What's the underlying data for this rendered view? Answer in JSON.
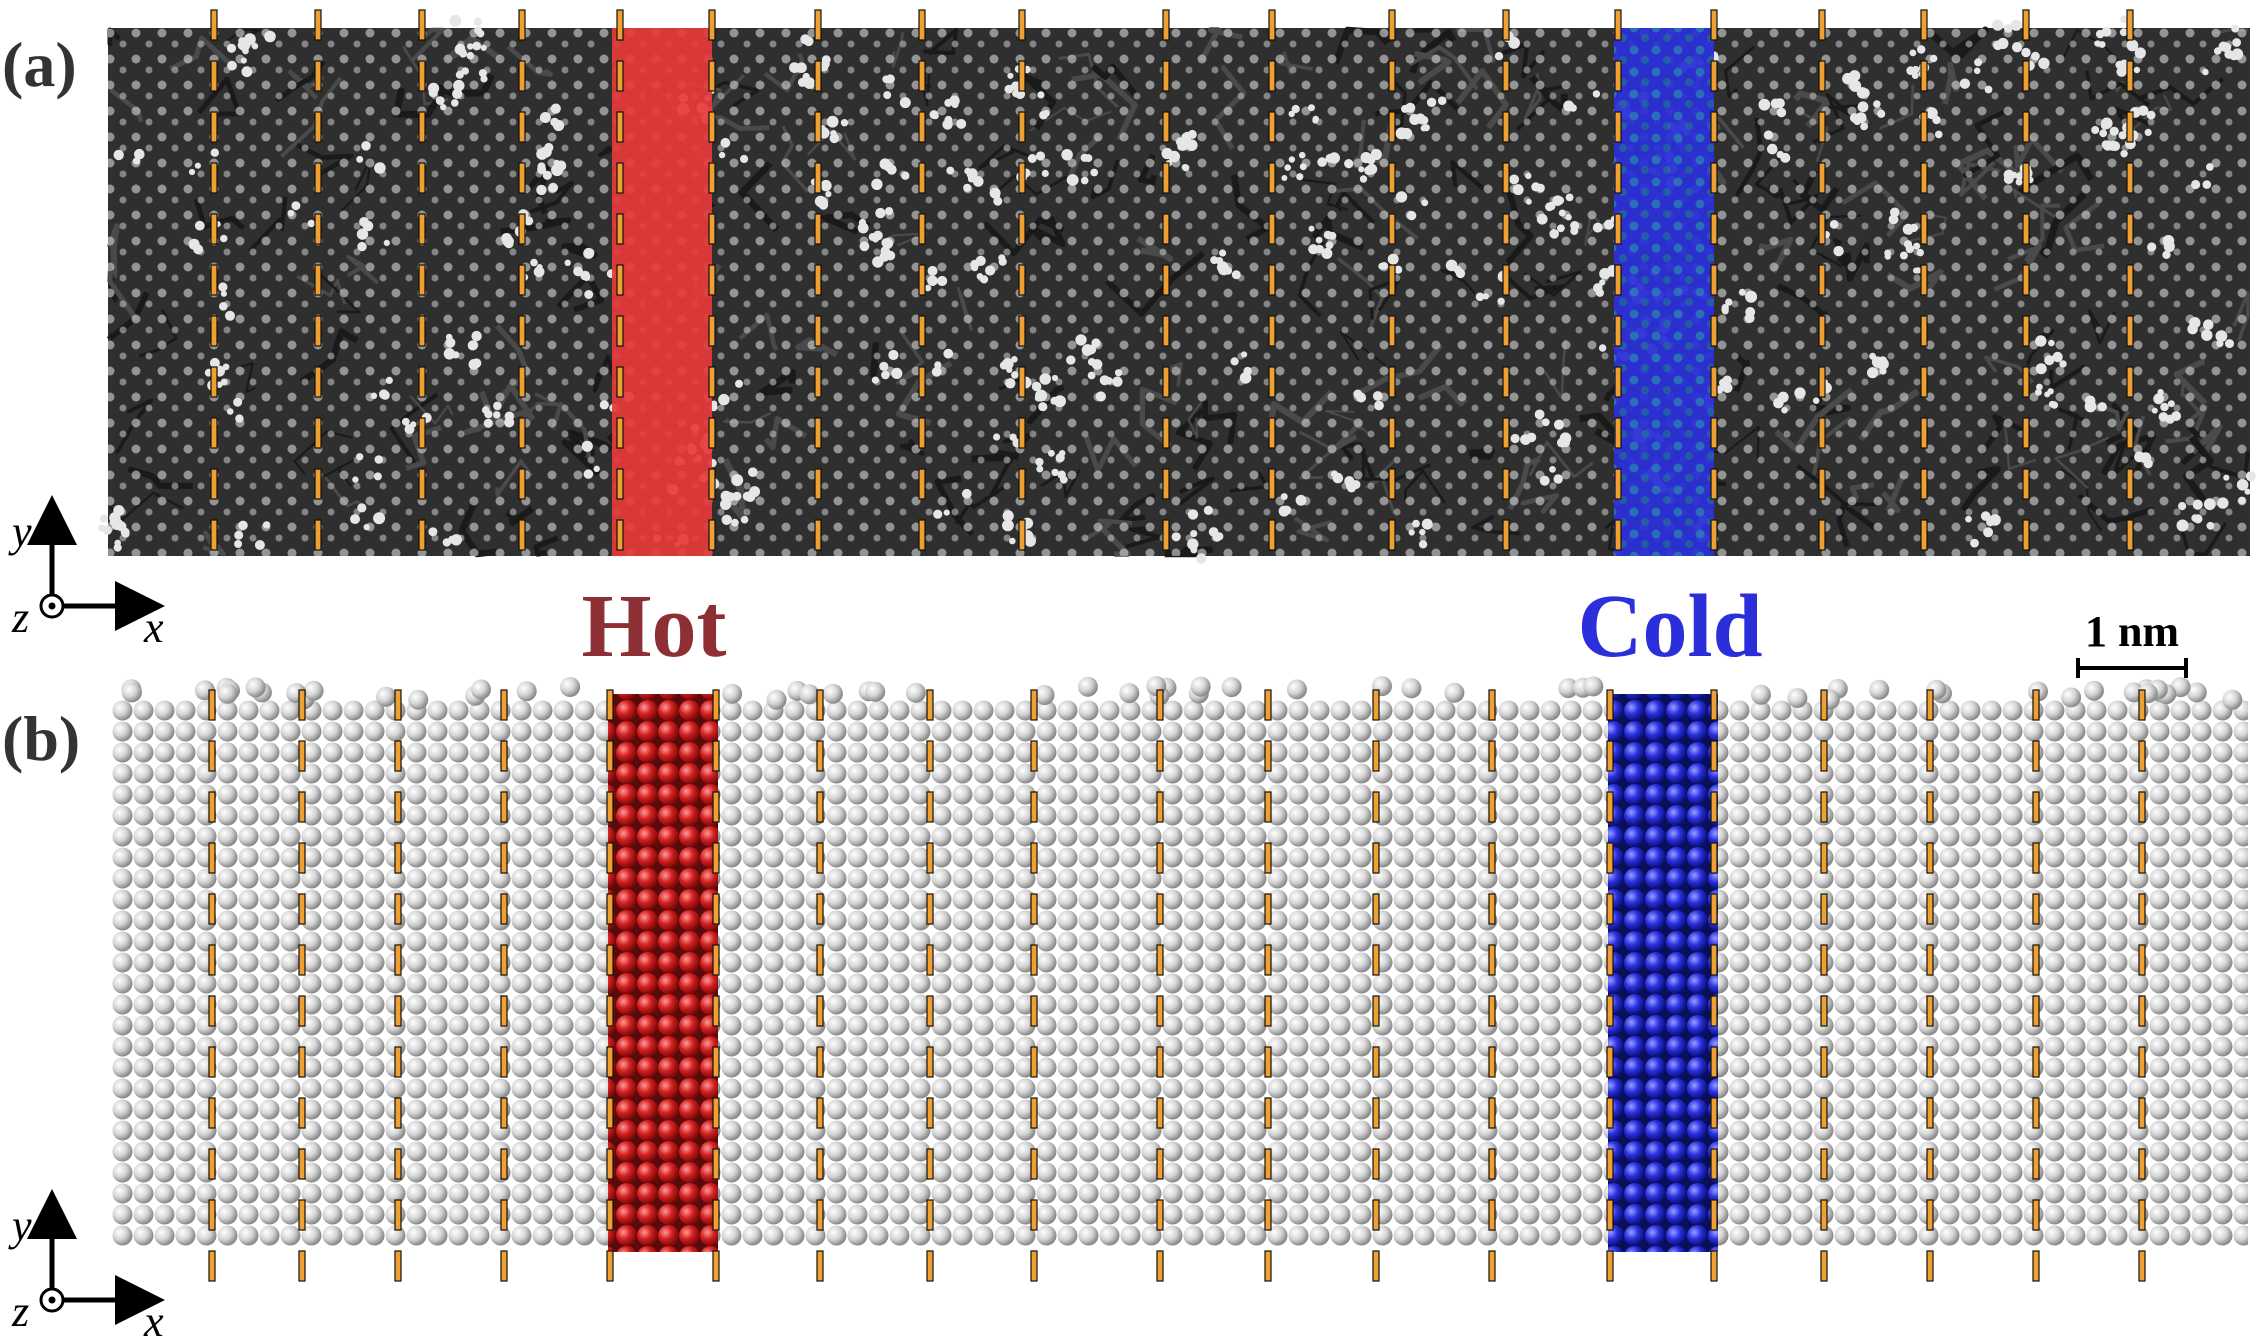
{
  "panels": [
    {
      "label": "(a)"
    },
    {
      "label": "(b)"
    }
  ],
  "regions": {
    "hot": {
      "label": "Hot",
      "color": "#8e2f35",
      "fill": "#e83a3a"
    },
    "cold": {
      "label": "Cold",
      "color": "#2b2fd9",
      "fill": "#2a2fd6"
    }
  },
  "scale_bar": {
    "label": "1 nm"
  },
  "axes": {
    "y": "y",
    "x": "x",
    "z": "z"
  },
  "colors": {
    "amorphous_network": "#2f2f2f",
    "atoms": "#d9d9d9",
    "slab_dividers": "#f0a030"
  }
}
